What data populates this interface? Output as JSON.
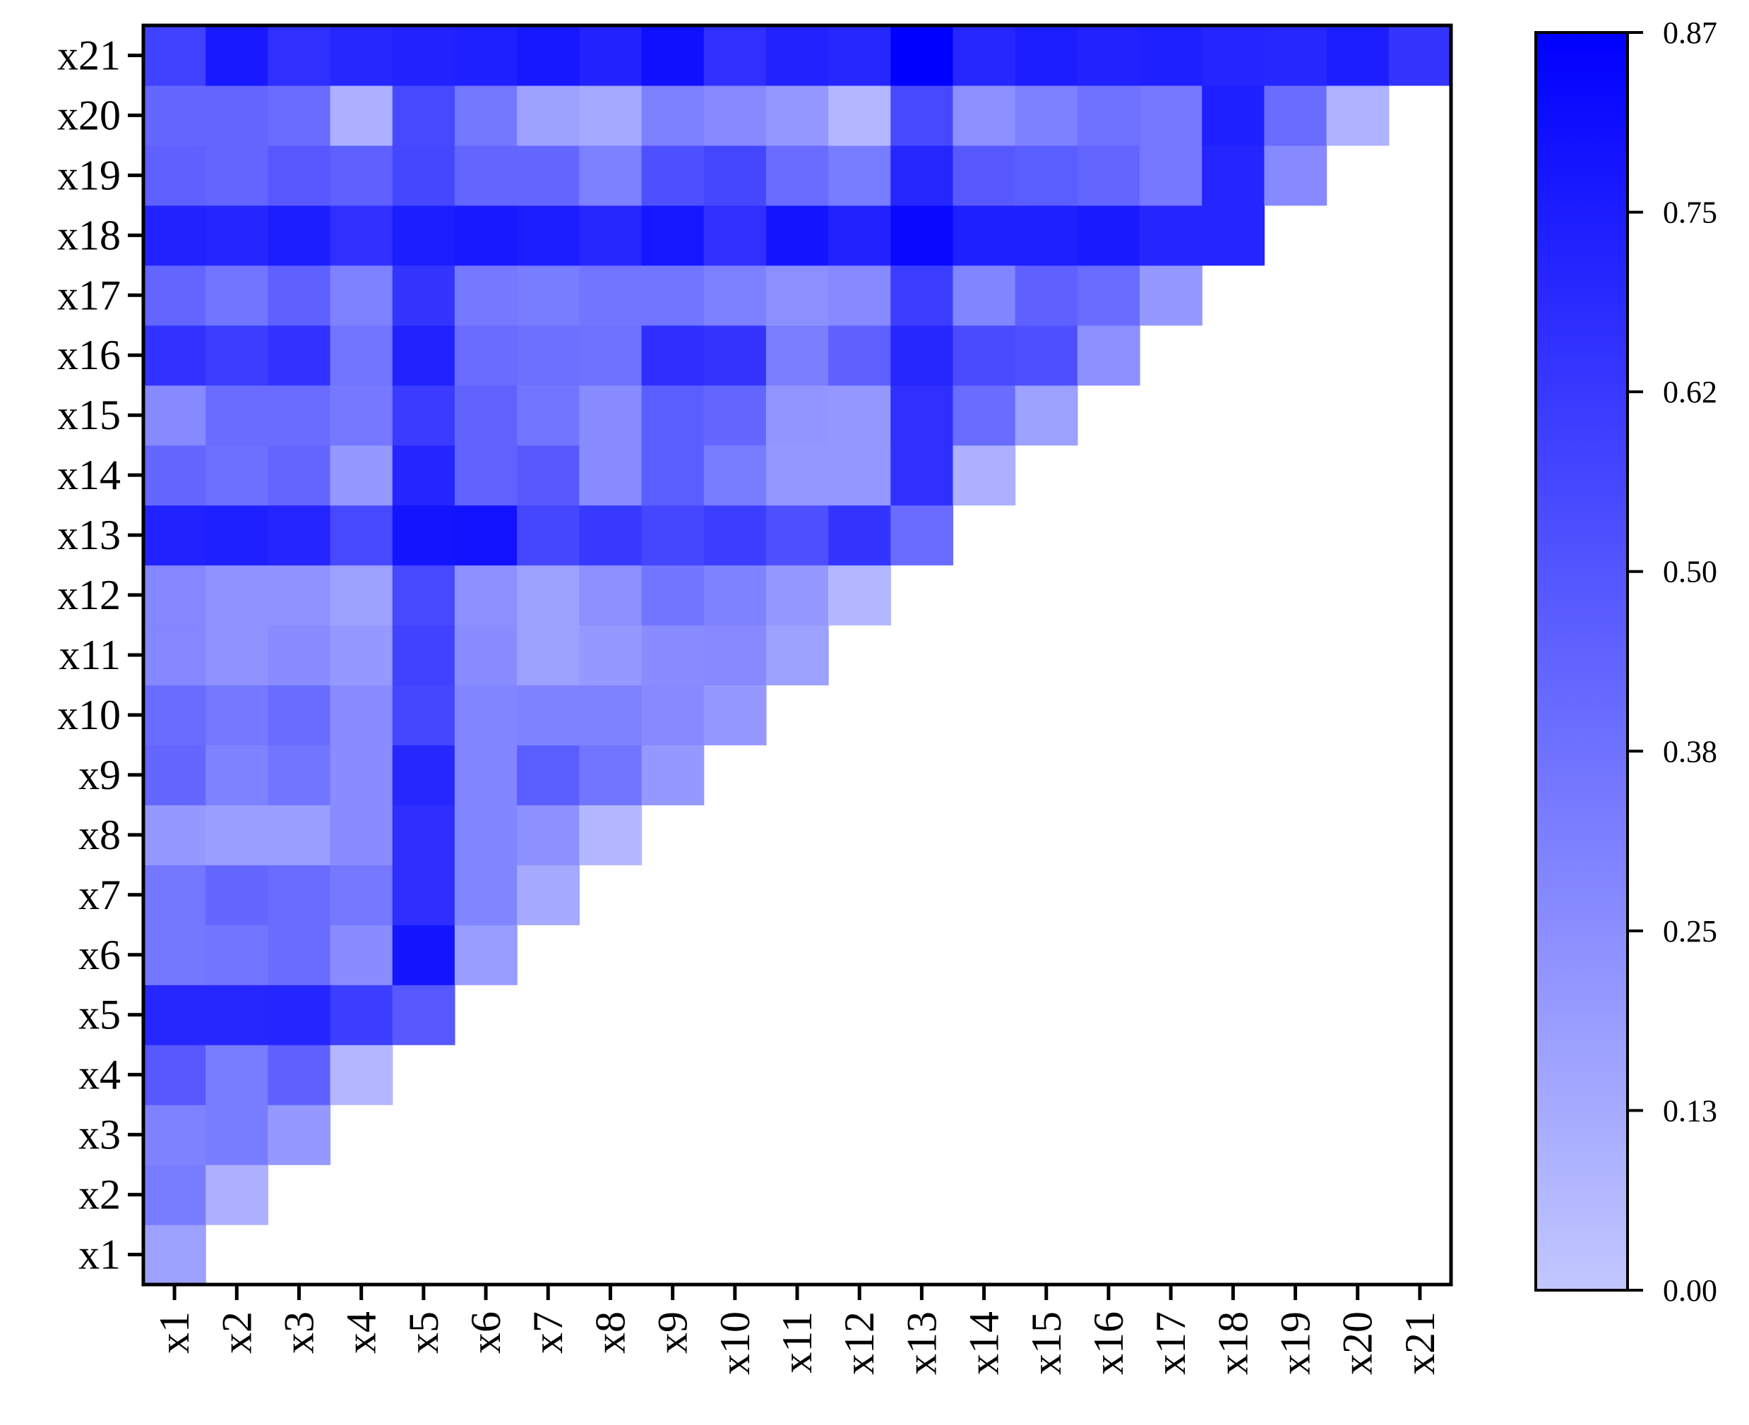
{
  "chart_data": {
    "type": "heatmap",
    "title": "",
    "xlabel": "",
    "ylabel": "",
    "x_categories": [
      "x1",
      "x2",
      "x3",
      "x4",
      "x5",
      "x6",
      "x7",
      "x8",
      "x9",
      "x10",
      "x11",
      "x12",
      "x13",
      "x14",
      "x15",
      "x16",
      "x17",
      "x18",
      "x19",
      "x20",
      "x21"
    ],
    "y_categories": [
      "x1",
      "x2",
      "x3",
      "x4",
      "x5",
      "x6",
      "x7",
      "x8",
      "x9",
      "x10",
      "x11",
      "x12",
      "x13",
      "x14",
      "x15",
      "x16",
      "x17",
      "x18",
      "x19",
      "x20",
      "x21"
    ],
    "values_note_rows_by_x": "each row i lists column values for x-index i (lower triangle, y >= x)",
    "matrix": [
      [
        0.17,
        0.33,
        0.3,
        0.48,
        0.7,
        0.35,
        0.35,
        0.2,
        0.42,
        0.4,
        0.28,
        0.28,
        0.72,
        0.42,
        0.27,
        0.65,
        0.43,
        0.72,
        0.45,
        0.42,
        0.58
      ],
      [
        0.1,
        0.33,
        0.33,
        0.7,
        0.36,
        0.42,
        0.18,
        0.3,
        0.34,
        0.23,
        0.23,
        0.73,
        0.38,
        0.4,
        0.6,
        0.36,
        0.71,
        0.43,
        0.43,
        0.76
      ],
      [
        0.2,
        0.45,
        0.71,
        0.4,
        0.4,
        0.18,
        0.36,
        0.4,
        0.26,
        0.23,
        0.71,
        0.43,
        0.4,
        0.65,
        0.45,
        0.74,
        0.48,
        0.4,
        0.66
      ],
      [
        0.07,
        0.6,
        0.26,
        0.34,
        0.26,
        0.26,
        0.26,
        0.2,
        0.17,
        0.55,
        0.2,
        0.34,
        0.36,
        0.3,
        0.66,
        0.45,
        0.1,
        0.7
      ],
      [
        0.48,
        0.78,
        0.67,
        0.67,
        0.7,
        0.56,
        0.58,
        0.55,
        0.78,
        0.71,
        0.61,
        0.72,
        0.64,
        0.74,
        0.56,
        0.55,
        0.72
      ],
      [
        0.19,
        0.29,
        0.29,
        0.29,
        0.29,
        0.26,
        0.24,
        0.79,
        0.44,
        0.44,
        0.4,
        0.34,
        0.76,
        0.43,
        0.35,
        0.73
      ],
      [
        0.13,
        0.24,
        0.46,
        0.3,
        0.17,
        0.17,
        0.56,
        0.48,
        0.36,
        0.38,
        0.33,
        0.74,
        0.42,
        0.17,
        0.77
      ],
      [
        0.07,
        0.36,
        0.3,
        0.2,
        0.24,
        0.62,
        0.26,
        0.26,
        0.37,
        0.36,
        0.7,
        0.31,
        0.13,
        0.72
      ],
      [
        0.2,
        0.27,
        0.26,
        0.36,
        0.56,
        0.46,
        0.46,
        0.67,
        0.36,
        0.77,
        0.52,
        0.31,
        0.8
      ],
      [
        0.2,
        0.27,
        0.3,
        0.6,
        0.33,
        0.42,
        0.64,
        0.31,
        0.66,
        0.56,
        0.27,
        0.66
      ],
      [
        0.17,
        0.2,
        0.52,
        0.21,
        0.22,
        0.32,
        0.24,
        0.78,
        0.4,
        0.21,
        0.72
      ],
      [
        0.07,
        0.64,
        0.21,
        0.2,
        0.45,
        0.27,
        0.72,
        0.33,
        0.07,
        0.7
      ],
      [
        0.4,
        0.66,
        0.66,
        0.7,
        0.6,
        0.83,
        0.7,
        0.55,
        0.87
      ],
      [
        0.1,
        0.4,
        0.54,
        0.29,
        0.73,
        0.48,
        0.24,
        0.7
      ],
      [
        0.17,
        0.52,
        0.45,
        0.73,
        0.46,
        0.31,
        0.74
      ],
      [
        0.24,
        0.4,
        0.75,
        0.43,
        0.37,
        0.72
      ],
      [
        0.2,
        0.71,
        0.34,
        0.34,
        0.73
      ],
      [
        0.71,
        0.71,
        0.73,
        0.71
      ],
      [
        0.27,
        0.4,
        0.7
      ],
      [
        0.09,
        0.74
      ],
      [
        0.64
      ]
    ],
    "colorbar": {
      "min": 0.0,
      "max": 0.87,
      "ticks": [
        "0.00",
        "0.13",
        "0.25",
        "0.38",
        "0.50",
        "0.62",
        "0.75",
        "0.87"
      ],
      "low_color": "#c2c7ff",
      "high_color": "#0000ff"
    },
    "grid": false,
    "legend": "colorbar-right"
  }
}
